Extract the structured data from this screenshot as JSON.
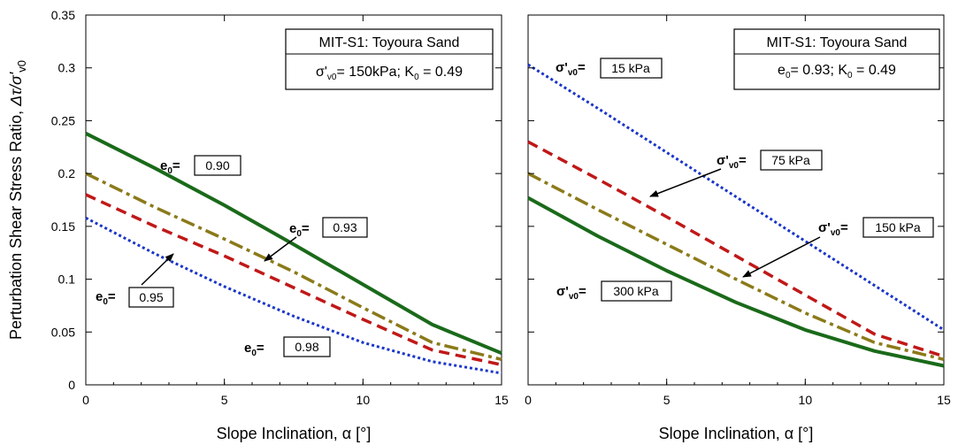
{
  "chart_data": [
    {
      "type": "line",
      "xlabel": "Slope Inclination, α [°]",
      "ylabel_parts": [
        "Perturbation Shear Stress Ratio, ",
        "Δτ/σ'",
        "v0"
      ],
      "xlim": [
        0,
        15
      ],
      "ylim": [
        0,
        0.35
      ],
      "xticks": [
        "0",
        "5",
        "10",
        "15"
      ],
      "yticks": [
        "0",
        "0.05",
        "0.1",
        "0.15",
        "0.2",
        "0.25",
        "0.3",
        "0.35"
      ],
      "info_box": {
        "line1": "MIT-S1: Toyoura Sand",
        "line2_parts": [
          "σ'",
          "v0",
          "= 150kPa; K",
          "0",
          " = 0.49"
        ]
      },
      "series": [
        {
          "name": "0.90",
          "label_sym": "e",
          "label_sub": "0",
          "label_eq": "=",
          "color": "#1a6a1a",
          "style": "solid",
          "x": [
            0,
            2.5,
            5,
            7.5,
            10,
            12.5,
            15
          ],
          "y": [
            0.238,
            0.205,
            0.17,
            0.133,
            0.095,
            0.057,
            0.03
          ]
        },
        {
          "name": "0.93",
          "label_sym": "e",
          "label_sub": "0",
          "label_eq": "=",
          "color": "#8b7a1a",
          "style": "dashdot",
          "x": [
            0,
            2.5,
            5,
            7.5,
            10,
            12.5,
            15
          ],
          "y": [
            0.2,
            0.168,
            0.138,
            0.107,
            0.073,
            0.04,
            0.024
          ]
        },
        {
          "name": "0.95",
          "label_sym": "e",
          "label_sub": "0",
          "label_eq": "=",
          "color": "#c01818",
          "style": "dashed",
          "x": [
            0,
            2.5,
            5,
            7.5,
            10,
            12.5,
            15
          ],
          "y": [
            0.18,
            0.15,
            0.122,
            0.092,
            0.062,
            0.033,
            0.019
          ]
        },
        {
          "name": "0.98",
          "label_sym": "e",
          "label_sub": "0",
          "label_eq": "=",
          "color": "#1a35c8",
          "style": "dotted",
          "x": [
            0,
            2.5,
            5,
            7.5,
            10,
            12.5,
            15
          ],
          "y": [
            0.158,
            0.124,
            0.093,
            0.065,
            0.04,
            0.022,
            0.011
          ]
        }
      ]
    },
    {
      "type": "line",
      "xlabel": "Slope Inclination, α [°]",
      "xlim": [
        0,
        15
      ],
      "ylim": [
        0,
        0.35
      ],
      "xticks": [
        "0",
        "5",
        "10",
        "15"
      ],
      "info_box": {
        "line1": "MIT-S1: Toyoura Sand",
        "line2_parts": [
          "e",
          "0",
          "= 0.93; K",
          "0",
          " = 0.49"
        ]
      },
      "series": [
        {
          "name": "15 kPa",
          "label_sym": "σ'",
          "label_sub": "v0",
          "label_eq": "=",
          "color": "#1a35c8",
          "style": "dotted",
          "x": [
            0,
            2.5,
            5,
            7.5,
            10,
            12.5,
            15
          ],
          "y": [
            0.303,
            0.262,
            0.22,
            0.178,
            0.136,
            0.094,
            0.052
          ]
        },
        {
          "name": "75 kPa",
          "label_sym": "σ'",
          "label_sub": "v0",
          "label_eq": "=",
          "color": "#c01818",
          "style": "dashed",
          "x": [
            0,
            2.5,
            5,
            7.5,
            10,
            12.5,
            15
          ],
          "y": [
            0.23,
            0.195,
            0.159,
            0.122,
            0.085,
            0.048,
            0.027
          ]
        },
        {
          "name": "150 kPa",
          "label_sym": "σ'",
          "label_sub": "v0",
          "label_eq": "=",
          "color": "#8b7a1a",
          "style": "dashdot",
          "x": [
            0,
            2.5,
            5,
            7.5,
            10,
            12.5,
            15
          ],
          "y": [
            0.2,
            0.166,
            0.133,
            0.1,
            0.068,
            0.04,
            0.024
          ]
        },
        {
          "name": "300 kPa",
          "label_sym": "σ'",
          "label_sub": "v0",
          "label_eq": "=",
          "color": "#1a6a1a",
          "style": "solid",
          "x": [
            0,
            2.5,
            5,
            7.5,
            10,
            12.5,
            15
          ],
          "y": [
            0.177,
            0.141,
            0.108,
            0.078,
            0.052,
            0.032,
            0.018
          ]
        }
      ]
    }
  ]
}
